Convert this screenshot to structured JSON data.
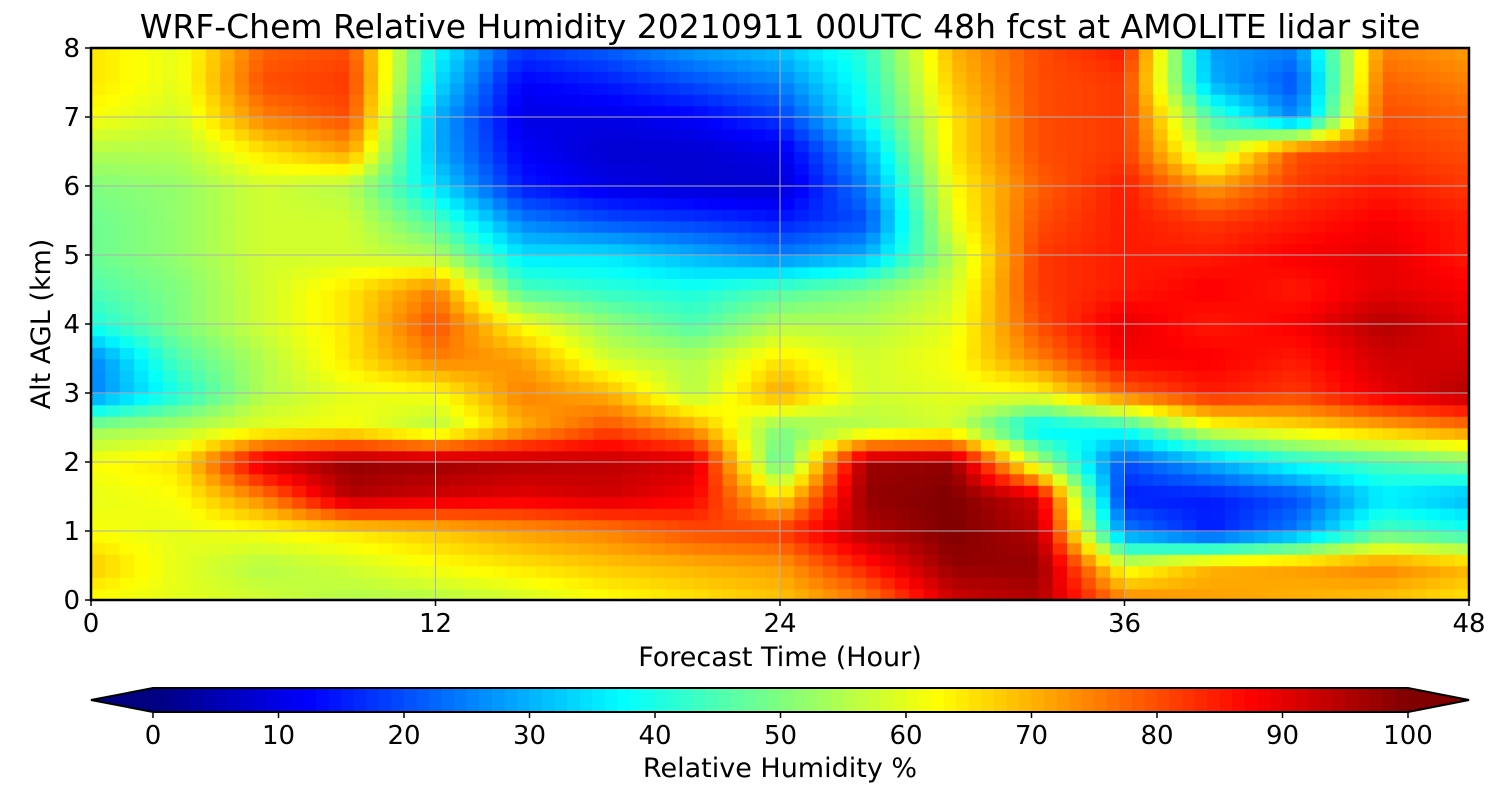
{
  "chart_data": {
    "type": "heatmap",
    "title": "WRF-Chem Relative Humidity 20210911 00UTC 48h fcst at AMOLITE lidar site",
    "xlabel": "Forecast Time (Hour)",
    "ylabel": "Alt AGL (km)",
    "xlim": [
      0,
      48
    ],
    "ylim": [
      0,
      8
    ],
    "xticks": [
      0,
      12,
      24,
      36,
      48
    ],
    "yticks": [
      0,
      1,
      2,
      3,
      4,
      5,
      6,
      7,
      8
    ],
    "grid": true,
    "colormap": "jet",
    "colorbar": {
      "label": "Relative Humidity %",
      "ticks": [
        0,
        10,
        20,
        30,
        40,
        50,
        60,
        70,
        80,
        90,
        100
      ],
      "range": [
        0,
        100
      ],
      "extend": "both",
      "orientation": "horizontal"
    },
    "x": [
      0,
      3,
      6,
      9,
      12,
      15,
      18,
      21,
      24,
      27,
      30,
      33,
      36,
      39,
      42,
      45,
      48
    ],
    "y": [
      0,
      0.5,
      1,
      1.5,
      2,
      2.5,
      3,
      3.5,
      4,
      4.5,
      5,
      5.5,
      6,
      6.5,
      7,
      7.5,
      8
    ],
    "z": [
      [
        62,
        60,
        58,
        55,
        55,
        58,
        62,
        65,
        68,
        75,
        92,
        95,
        75,
        72,
        70,
        68,
        65
      ],
      [
        68,
        60,
        55,
        58,
        62,
        65,
        68,
        70,
        72,
        85,
        98,
        98,
        60,
        70,
        72,
        75,
        70
      ],
      [
        62,
        60,
        62,
        65,
        68,
        72,
        75,
        80,
        82,
        95,
        100,
        95,
        25,
        15,
        25,
        45,
        40
      ],
      [
        60,
        62,
        75,
        95,
        92,
        90,
        92,
        88,
        65,
        98,
        100,
        92,
        15,
        15,
        20,
        35,
        30
      ],
      [
        62,
        65,
        92,
        98,
        97,
        95,
        94,
        92,
        45,
        97,
        98,
        55,
        20,
        30,
        40,
        45,
        50
      ],
      [
        52,
        55,
        60,
        62,
        55,
        70,
        80,
        72,
        50,
        55,
        58,
        35,
        40,
        60,
        65,
        70,
        75
      ],
      [
        25,
        40,
        55,
        60,
        62,
        75,
        70,
        55,
        72,
        58,
        60,
        62,
        78,
        85,
        82,
        90,
        95
      ],
      [
        25,
        45,
        55,
        65,
        75,
        72,
        58,
        55,
        65,
        58,
        62,
        75,
        88,
        88,
        85,
        92,
        92
      ],
      [
        40,
        50,
        58,
        65,
        80,
        62,
        52,
        45,
        55,
        55,
        60,
        80,
        90,
        85,
        88,
        95,
        90
      ],
      [
        45,
        50,
        58,
        65,
        75,
        45,
        42,
        40,
        45,
        50,
        58,
        82,
        85,
        88,
        85,
        90,
        88
      ],
      [
        48,
        52,
        58,
        58,
        55,
        35,
        35,
        30,
        25,
        30,
        55,
        82,
        85,
        85,
        88,
        90,
        85
      ],
      [
        48,
        52,
        58,
        58,
        45,
        25,
        20,
        18,
        15,
        20,
        60,
        80,
        85,
        82,
        85,
        88,
        85
      ],
      [
        50,
        52,
        58,
        55,
        35,
        15,
        10,
        8,
        8,
        25,
        62,
        78,
        85,
        72,
        82,
        85,
        82
      ],
      [
        55,
        55,
        65,
        72,
        30,
        12,
        8,
        8,
        10,
        30,
        65,
        80,
        82,
        55,
        80,
        82,
        80
      ],
      [
        62,
        58,
        75,
        80,
        30,
        10,
        10,
        12,
        18,
        38,
        65,
        80,
        82,
        45,
        25,
        80,
        78
      ],
      [
        65,
        60,
        80,
        82,
        35,
        12,
        15,
        20,
        25,
        40,
        68,
        80,
        82,
        30,
        20,
        78,
        75
      ],
      [
        65,
        60,
        78,
        80,
        38,
        18,
        22,
        28,
        32,
        42,
        70,
        80,
        85,
        28,
        25,
        75,
        72
      ]
    ]
  }
}
